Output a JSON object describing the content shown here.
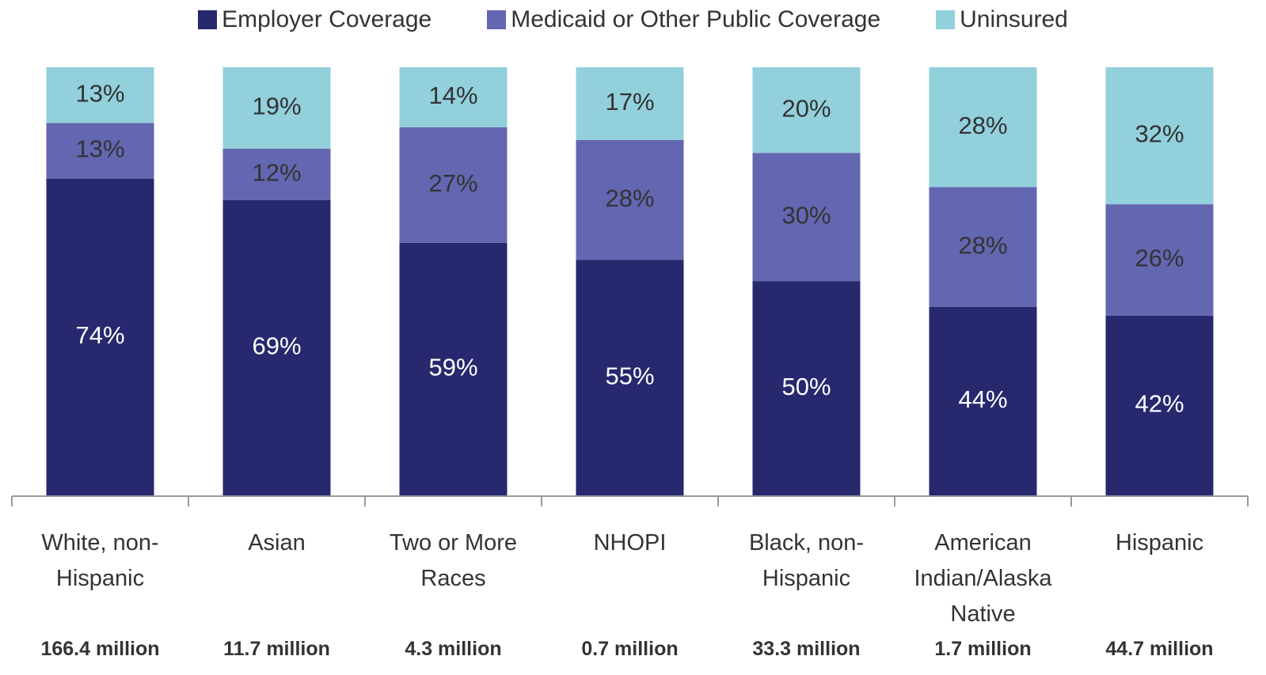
{
  "chart_data": {
    "type": "stacked-bar",
    "categories": [
      "White, non-Hispanic",
      "Asian",
      "Two or More Races",
      "NHOPI",
      "Black, non-Hispanic",
      "American Indian/Alaska Native",
      "Hispanic"
    ],
    "category_notes": [
      "166.4 million",
      "11.7 million",
      "4.3 million",
      "0.7 million",
      "33.3 million",
      "1.7 million",
      "44.7 million"
    ],
    "series": [
      {
        "name": "Employer Coverage",
        "color": "#27286e",
        "values": [
          74,
          69,
          59,
          55,
          50,
          44,
          42
        ],
        "value_labels": [
          "74%",
          "69%",
          "59%",
          "55%",
          "50%",
          "44%",
          "42%"
        ]
      },
      {
        "name": "Medicaid or Other Public Coverage",
        "color": "#6366b0",
        "values": [
          13,
          12,
          27,
          28,
          30,
          28,
          26
        ],
        "value_labels": [
          "13%",
          "12%",
          "27%",
          "28%",
          "30%",
          "28%",
          "26%"
        ]
      },
      {
        "name": "Uninsured",
        "color": "#92d0dc",
        "values": [
          13,
          19,
          14,
          17,
          20,
          28,
          32
        ],
        "value_labels": [
          "13%",
          "19%",
          "14%",
          "17%",
          "20%",
          "28%",
          "32%"
        ]
      }
    ]
  }
}
